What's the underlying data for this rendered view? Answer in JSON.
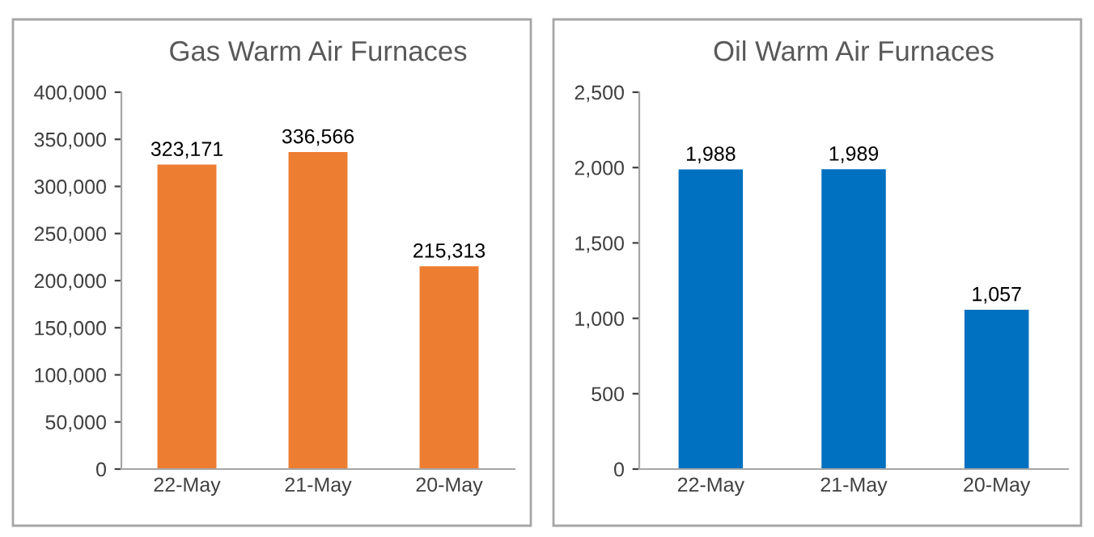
{
  "chart_data": [
    {
      "type": "bar",
      "title": "Gas Warm Air Furnaces",
      "categories": [
        "22-May",
        "21-May",
        "20-May"
      ],
      "values": [
        323171,
        336566,
        215313
      ],
      "value_labels": [
        "323,171",
        "336,566",
        "215,313"
      ],
      "color": "#ed7d31",
      "ylim": [
        0,
        400000
      ],
      "yticks": [
        {
          "value": 0,
          "label": "0"
        },
        {
          "value": 50000,
          "label": "50,000"
        },
        {
          "value": 100000,
          "label": "100,000"
        },
        {
          "value": 150000,
          "label": "150,000"
        },
        {
          "value": 200000,
          "label": "200,000"
        },
        {
          "value": 250000,
          "label": "250,000"
        },
        {
          "value": 300000,
          "label": "300,000"
        },
        {
          "value": 350000,
          "label": "350,000"
        },
        {
          "value": 400000,
          "label": "400,000"
        }
      ],
      "grid": false,
      "legend": false
    },
    {
      "type": "bar",
      "title": "Oil Warm Air Furnaces",
      "categories": [
        "22-May",
        "21-May",
        "20-May"
      ],
      "values": [
        1988,
        1989,
        1057
      ],
      "value_labels": [
        "1,988",
        "1,989",
        "1,057"
      ],
      "color": "#0070c0",
      "ylim": [
        0,
        2500
      ],
      "yticks": [
        {
          "value": 0,
          "label": "0"
        },
        {
          "value": 500,
          "label": "500"
        },
        {
          "value": 1000,
          "label": "1,000"
        },
        {
          "value": 1500,
          "label": "1,500"
        },
        {
          "value": 2000,
          "label": "2,000"
        },
        {
          "value": 2500,
          "label": "2,500"
        }
      ],
      "grid": false,
      "legend": false
    }
  ]
}
